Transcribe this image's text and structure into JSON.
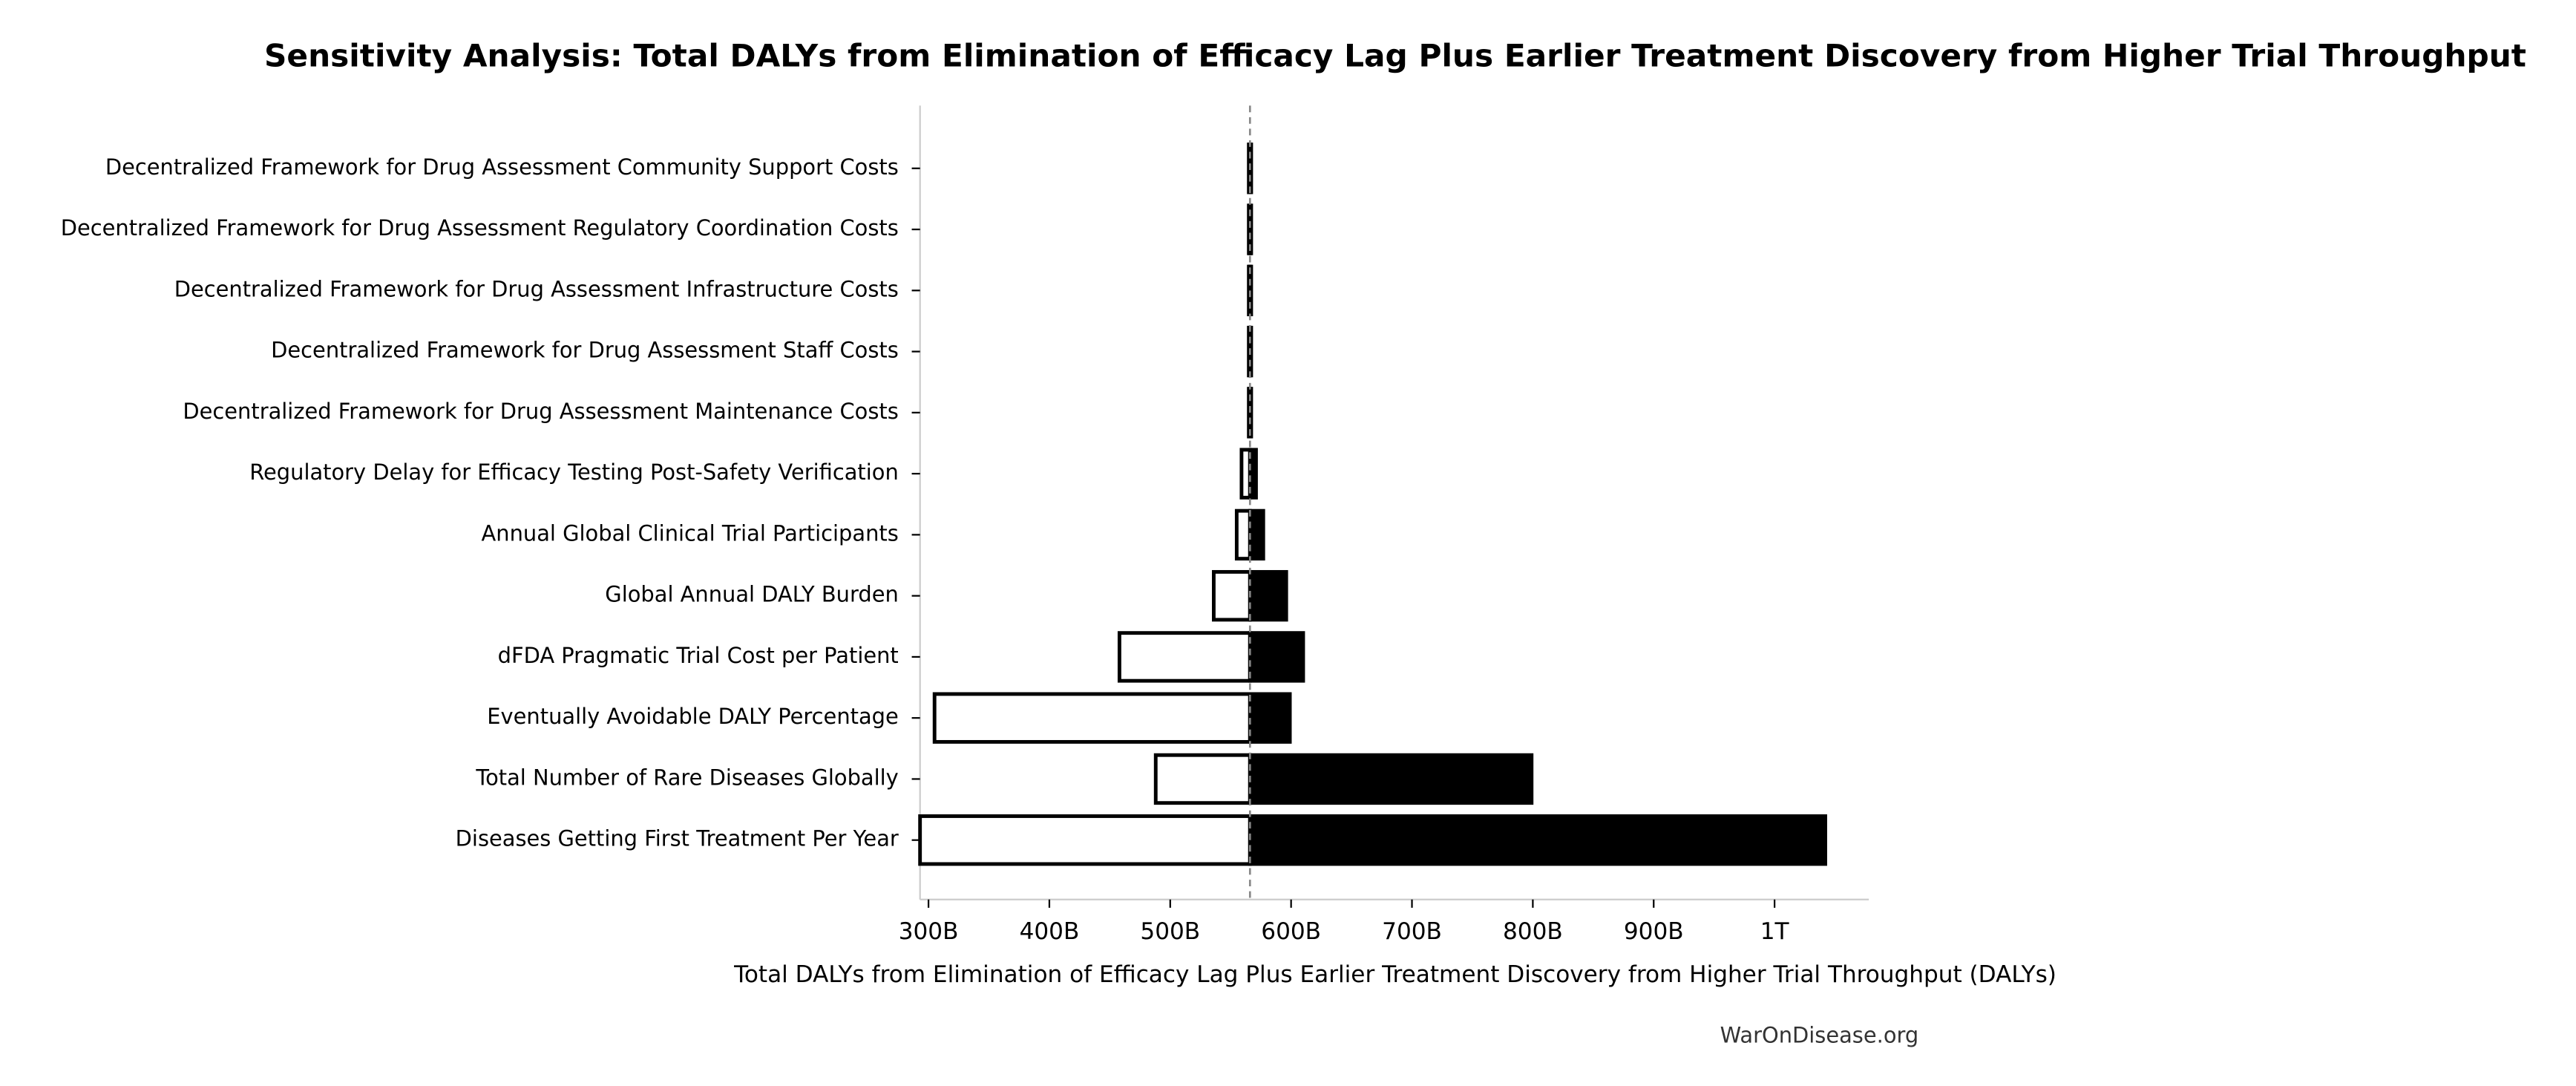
{
  "chart_data": {
    "type": "tornado",
    "title": "Sensitivity Analysis: Total DALYs from Elimination of Efficacy Lag Plus Earlier Treatment Discovery from Higher Trial Throughput",
    "xlabel": "Total DALYs from Elimination of Efficacy Lag Plus Earlier Treatment Discovery from Higher Trial Throughput (DALYs)",
    "footer": "WarOnDisease.org",
    "categories": [
      "Decentralized Framework for Drug Assessment Community Support Costs",
      "Decentralized Framework for Drug Assessment Regulatory Coordination Costs",
      "Decentralized Framework for Drug Assessment Infrastructure Costs",
      "Decentralized Framework for Drug Assessment Staff Costs",
      "Decentralized Framework for Drug Assessment Maintenance Costs",
      "Regulatory Delay for Efficacy Testing Post-Safety Verification",
      "Annual Global Clinical Trial Participants",
      "Global Annual DALY Burden",
      "dFDA Pragmatic Trial Cost per Patient",
      "Eventually Avoidable DALY Percentage",
      "Total Number of Rare Diseases Globally",
      "Diseases Getting First Treatment Per Year"
    ],
    "baseline": 566000000000,
    "low_values": [
      565000000000,
      565000000000,
      565000000000,
      565000000000,
      565000000000,
      559000000000,
      555000000000,
      536000000000,
      458000000000,
      305000000000,
      488000000000,
      293000000000
    ],
    "high_values": [
      567000000000,
      567000000000,
      567000000000,
      567000000000,
      567000000000,
      571000000000,
      577000000000,
      596000000000,
      610000000000,
      599000000000,
      799000000000,
      1042000000000
    ],
    "low_color": "#ffffff",
    "high_color": "#000000",
    "baseline_color": "#888888",
    "xlim": [
      293000000000,
      1078000000000
    ],
    "xticks": [
      {
        "value": 300000000000,
        "label": "300B"
      },
      {
        "value": 400000000000,
        "label": "400B"
      },
      {
        "value": 500000000000,
        "label": "500B"
      },
      {
        "value": 600000000000,
        "label": "600B"
      },
      {
        "value": 700000000000,
        "label": "700B"
      },
      {
        "value": 800000000000,
        "label": "800B"
      },
      {
        "value": 900000000000,
        "label": "900B"
      },
      {
        "value": 1000000000000,
        "label": "1T"
      }
    ]
  }
}
